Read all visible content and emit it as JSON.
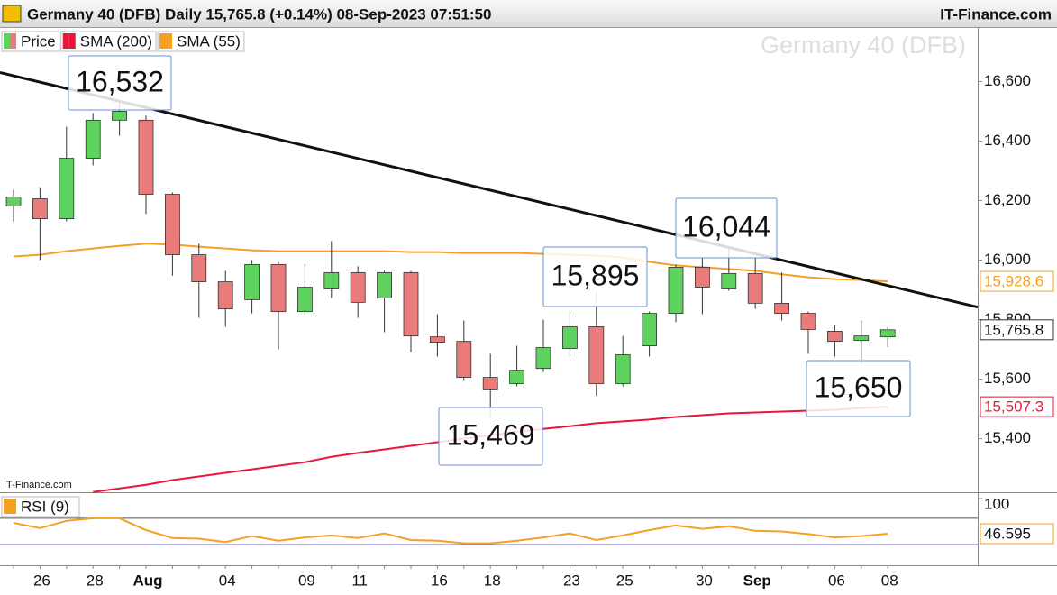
{
  "chart_data": [
    {
      "type": "candlestick",
      "title": "Germany 40 (DFB) Daily 15,765.8 (+0.14%) 08-Sep-2023 07:51:50",
      "source": "IT-Finance.com",
      "credit": "IT-Finance.com",
      "watermark": "Germany 40 (DFB)",
      "legend_label": "Price",
      "up_color": "#5ed25e",
      "down_color": "#e97b7b",
      "categories": [
        null,
        "26",
        null,
        "28",
        null,
        "Aug",
        null,
        null,
        "04",
        null,
        null,
        "09",
        null,
        "11",
        null,
        null,
        "16",
        null,
        "18",
        null,
        null,
        "23",
        null,
        "25",
        null,
        null,
        "30",
        null,
        "Sep",
        null,
        null,
        "06",
        null,
        "08"
      ],
      "open": [
        16182,
        16206,
        16139,
        16342,
        16470,
        16470,
        16221,
        16018,
        15927,
        15867,
        15985,
        15827,
        15903,
        15958,
        15873,
        15958,
        15742,
        15727,
        15606,
        15585,
        15636,
        15703,
        15776,
        15585,
        15712,
        15821,
        15976,
        15903,
        15955,
        15855,
        15821,
        15761,
        15730,
        15742
      ],
      "high": [
        16236,
        16245,
        16448,
        16494,
        16532,
        16485,
        16227,
        16055,
        15964,
        16000,
        15994,
        15988,
        16064,
        15979,
        15964,
        15964,
        15818,
        15797,
        15685,
        15712,
        15800,
        15827,
        15895,
        15745,
        15827,
        15985,
        16009,
        16044,
        16006,
        15958,
        15827,
        15782,
        15797,
        15776
      ],
      "low": [
        16130,
        16000,
        16130,
        16318,
        16418,
        16155,
        15948,
        15806,
        15776,
        15821,
        15700,
        15818,
        15873,
        15806,
        15758,
        15691,
        15676,
        15594,
        15469,
        15576,
        15624,
        15676,
        15545,
        15576,
        15676,
        15791,
        15818,
        15897,
        15836,
        15797,
        15685,
        15676,
        15650,
        15709
      ],
      "close": [
        16212,
        16139,
        16342,
        16470,
        16500,
        16221,
        16018,
        15927,
        15836,
        15985,
        15827,
        15909,
        15958,
        15858,
        15958,
        15745,
        15724,
        15606,
        15564,
        15630,
        15706,
        15776,
        15585,
        15682,
        15821,
        15976,
        15909,
        15955,
        15855,
        15821,
        15767,
        15727,
        15745,
        15765.8
      ],
      "last_label": "15,765.8",
      "series": [
        {
          "name": "SMA (200)",
          "color": "#e8173a",
          "last_label": "15,507.3",
          "values": [
            null,
            null,
            null,
            15221,
            15233,
            15245,
            15261,
            15273,
            15285,
            15297,
            15309,
            15321,
            15339,
            15352,
            15364,
            15376,
            15388,
            15400,
            15412,
            15424,
            15433,
            15442,
            15452,
            15458,
            15464,
            15473,
            15479,
            15485,
            15488,
            15491,
            15494,
            15497,
            15503,
            15507.3
          ]
        },
        {
          "name": "SMA (55)",
          "color": "#f5a023",
          "last_label": "15,928.6",
          "values": [
            16012,
            16018,
            16030,
            16039,
            16048,
            16055,
            16052,
            16045,
            16039,
            16033,
            16030,
            16030,
            16030,
            16030,
            16030,
            16027,
            16027,
            16024,
            16024,
            16024,
            16021,
            16018,
            16015,
            16009,
            15994,
            15982,
            15976,
            15970,
            15964,
            15952,
            15942,
            15936,
            15933,
            15928.6
          ]
        }
      ],
      "trendline": {
        "values": [
          16630,
          15842
        ],
        "color": "#111111"
      },
      "annotations": [
        "16,532",
        "15,895",
        "16,044",
        "15,469",
        "15,650"
      ],
      "ylim": [
        15220,
        16780
      ],
      "yticks": [
        {
          "value": 15400,
          "label": "15,400"
        },
        {
          "value": 15600,
          "label": "15,600"
        },
        {
          "value": 15800,
          "label": "15,800"
        },
        {
          "value": 16000,
          "label": "16,000"
        },
        {
          "value": 16200,
          "label": "16,200"
        },
        {
          "value": 16400,
          "label": "16,400"
        },
        {
          "value": 16600,
          "label": "16,600"
        }
      ]
    },
    {
      "type": "line",
      "name": "RSI (9)",
      "color": "#f5a023",
      "last_label": "46.595",
      "values": [
        63,
        55,
        66,
        70,
        70,
        52,
        40,
        39,
        34,
        43,
        36,
        41,
        44,
        40,
        47,
        37,
        36,
        32,
        32,
        36,
        41,
        47,
        37,
        44,
        52,
        59,
        54,
        58,
        51,
        50,
        46,
        41,
        43,
        46.595
      ],
      "levels": [
        {
          "value": 70,
          "color": "#555555"
        },
        {
          "value": 30,
          "color": "#3333aa"
        }
      ],
      "ylim": [
        0,
        100
      ],
      "yticks": [
        100
      ]
    }
  ]
}
